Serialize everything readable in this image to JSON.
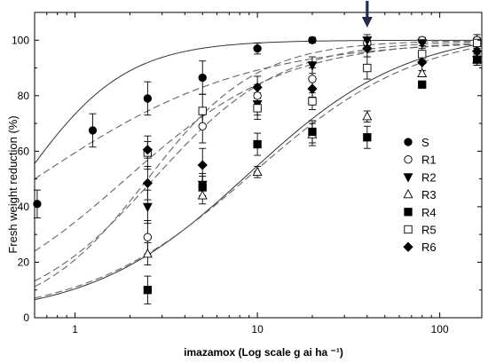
{
  "chart_data": {
    "type": "scatter",
    "title": "",
    "xlabel": "imazamox (Log scale g ai ha ⁻¹)",
    "ylabel": "Fresh weight reduction (%)",
    "xscale": "log",
    "xlim": [
      0.6,
      170
    ],
    "ylim": [
      0,
      110
    ],
    "x_ticks": [
      1,
      10,
      100
    ],
    "x_tick_labels": [
      "1",
      "10",
      "100"
    ],
    "y_ticks": [
      0,
      20,
      40,
      60,
      80,
      100
    ],
    "y_tick_labels": [
      "0",
      "20",
      "40",
      "60",
      "80",
      "100"
    ],
    "legend_position": "right",
    "annotation": "arrow-down at x=40",
    "arrow_x": 40,
    "x": [
      0.62,
      1.25,
      2.5,
      5,
      10,
      20,
      40,
      80,
      160
    ],
    "series": [
      {
        "name": "S",
        "marker": "circle-filled",
        "line": "solid",
        "points": [
          [
            0.62,
            41,
            5
          ],
          [
            1.25,
            67.5,
            6
          ],
          [
            2.5,
            79,
            6
          ],
          [
            5,
            86.5,
            6
          ],
          [
            10,
            97,
            2
          ],
          [
            20,
            100,
            1
          ],
          [
            40,
            99,
            2
          ],
          [
            80,
            100,
            1
          ],
          [
            160,
            100,
            2
          ]
        ]
      },
      {
        "name": "R1",
        "marker": "circle-open",
        "line": "dashed",
        "points": [
          [
            2.5,
            29,
            6
          ],
          [
            5,
            69,
            6
          ],
          [
            10,
            80,
            4
          ],
          [
            20,
            86,
            4
          ],
          [
            40,
            99,
            2
          ],
          [
            80,
            100,
            1
          ],
          [
            160,
            100,
            2
          ]
        ]
      },
      {
        "name": "R2",
        "marker": "triangle-down-filled",
        "line": "dashed",
        "points": [
          [
            2.5,
            40,
            6
          ],
          [
            5,
            48,
            4
          ],
          [
            10,
            77,
            4
          ],
          [
            20,
            91,
            3
          ],
          [
            40,
            100,
            2
          ],
          [
            80,
            99,
            1
          ],
          [
            160,
            93,
            2
          ]
        ]
      },
      {
        "name": "R3",
        "marker": "triangle-up-open",
        "line": "dashed",
        "points": [
          [
            2.5,
            23,
            4
          ],
          [
            5,
            44,
            3
          ],
          [
            10,
            52.5,
            2
          ],
          [
            20,
            66,
            4
          ],
          [
            40,
            72.5,
            2
          ],
          [
            80,
            88,
            1
          ],
          [
            160,
            93,
            2
          ]
        ]
      },
      {
        "name": "R4",
        "marker": "square-filled",
        "line": "dashed",
        "points": [
          [
            2.5,
            10,
            5
          ],
          [
            5,
            47,
            4
          ],
          [
            10,
            62.5,
            4
          ],
          [
            20,
            67,
            4
          ],
          [
            40,
            65,
            4
          ],
          [
            80,
            84,
            1
          ],
          [
            160,
            93,
            2
          ]
        ]
      },
      {
        "name": "R5",
        "marker": "square-open",
        "line": "dashed",
        "points": [
          [
            2.5,
            59.5,
            6
          ],
          [
            5,
            74.5,
            6
          ],
          [
            10,
            75.5,
            4
          ],
          [
            20,
            78,
            3
          ],
          [
            40,
            90,
            4
          ],
          [
            80,
            95,
            2
          ],
          [
            160,
            99,
            2
          ]
        ]
      },
      {
        "name": "R6",
        "marker": "diamond-filled",
        "line": "dashed",
        "points": [
          [
            2.5,
            60.5,
            3
          ],
          [
            2.5,
            48.5,
            6
          ],
          [
            5,
            55,
            6
          ],
          [
            10,
            83,
            4
          ],
          [
            20,
            82.5,
            3
          ],
          [
            40,
            97,
            3
          ],
          [
            80,
            92,
            3
          ],
          [
            160,
            96,
            2
          ]
        ]
      }
    ],
    "curves": [
      {
        "name": "S",
        "style": "solid",
        "top": 100,
        "bottom": 0,
        "ed50": 0.52,
        "slope": 1.55
      },
      {
        "name": "R1",
        "style": "dashed",
        "top": 100,
        "bottom": 0,
        "ed50": 2.5,
        "slope": 1.45
      },
      {
        "name": "R2",
        "style": "dashed",
        "top": 100,
        "bottom": 0,
        "ed50": 2.7,
        "slope": 1.25
      },
      {
        "name": "R3",
        "style": "solid",
        "top": 104,
        "bottom": 0,
        "ed50": 9.0,
        "slope": 1.0
      },
      {
        "name": "R4",
        "style": "dashed",
        "top": 104,
        "bottom": 0,
        "ed50": 9.4,
        "slope": 0.95
      },
      {
        "name": "R5",
        "style": "dashed",
        "top": 100,
        "bottom": 0,
        "ed50": 0.6,
        "slope": 0.75
      },
      {
        "name": "R6",
        "style": "dashed",
        "top": 100,
        "bottom": 0,
        "ed50": 1.9,
        "slope": 1.0
      }
    ]
  }
}
